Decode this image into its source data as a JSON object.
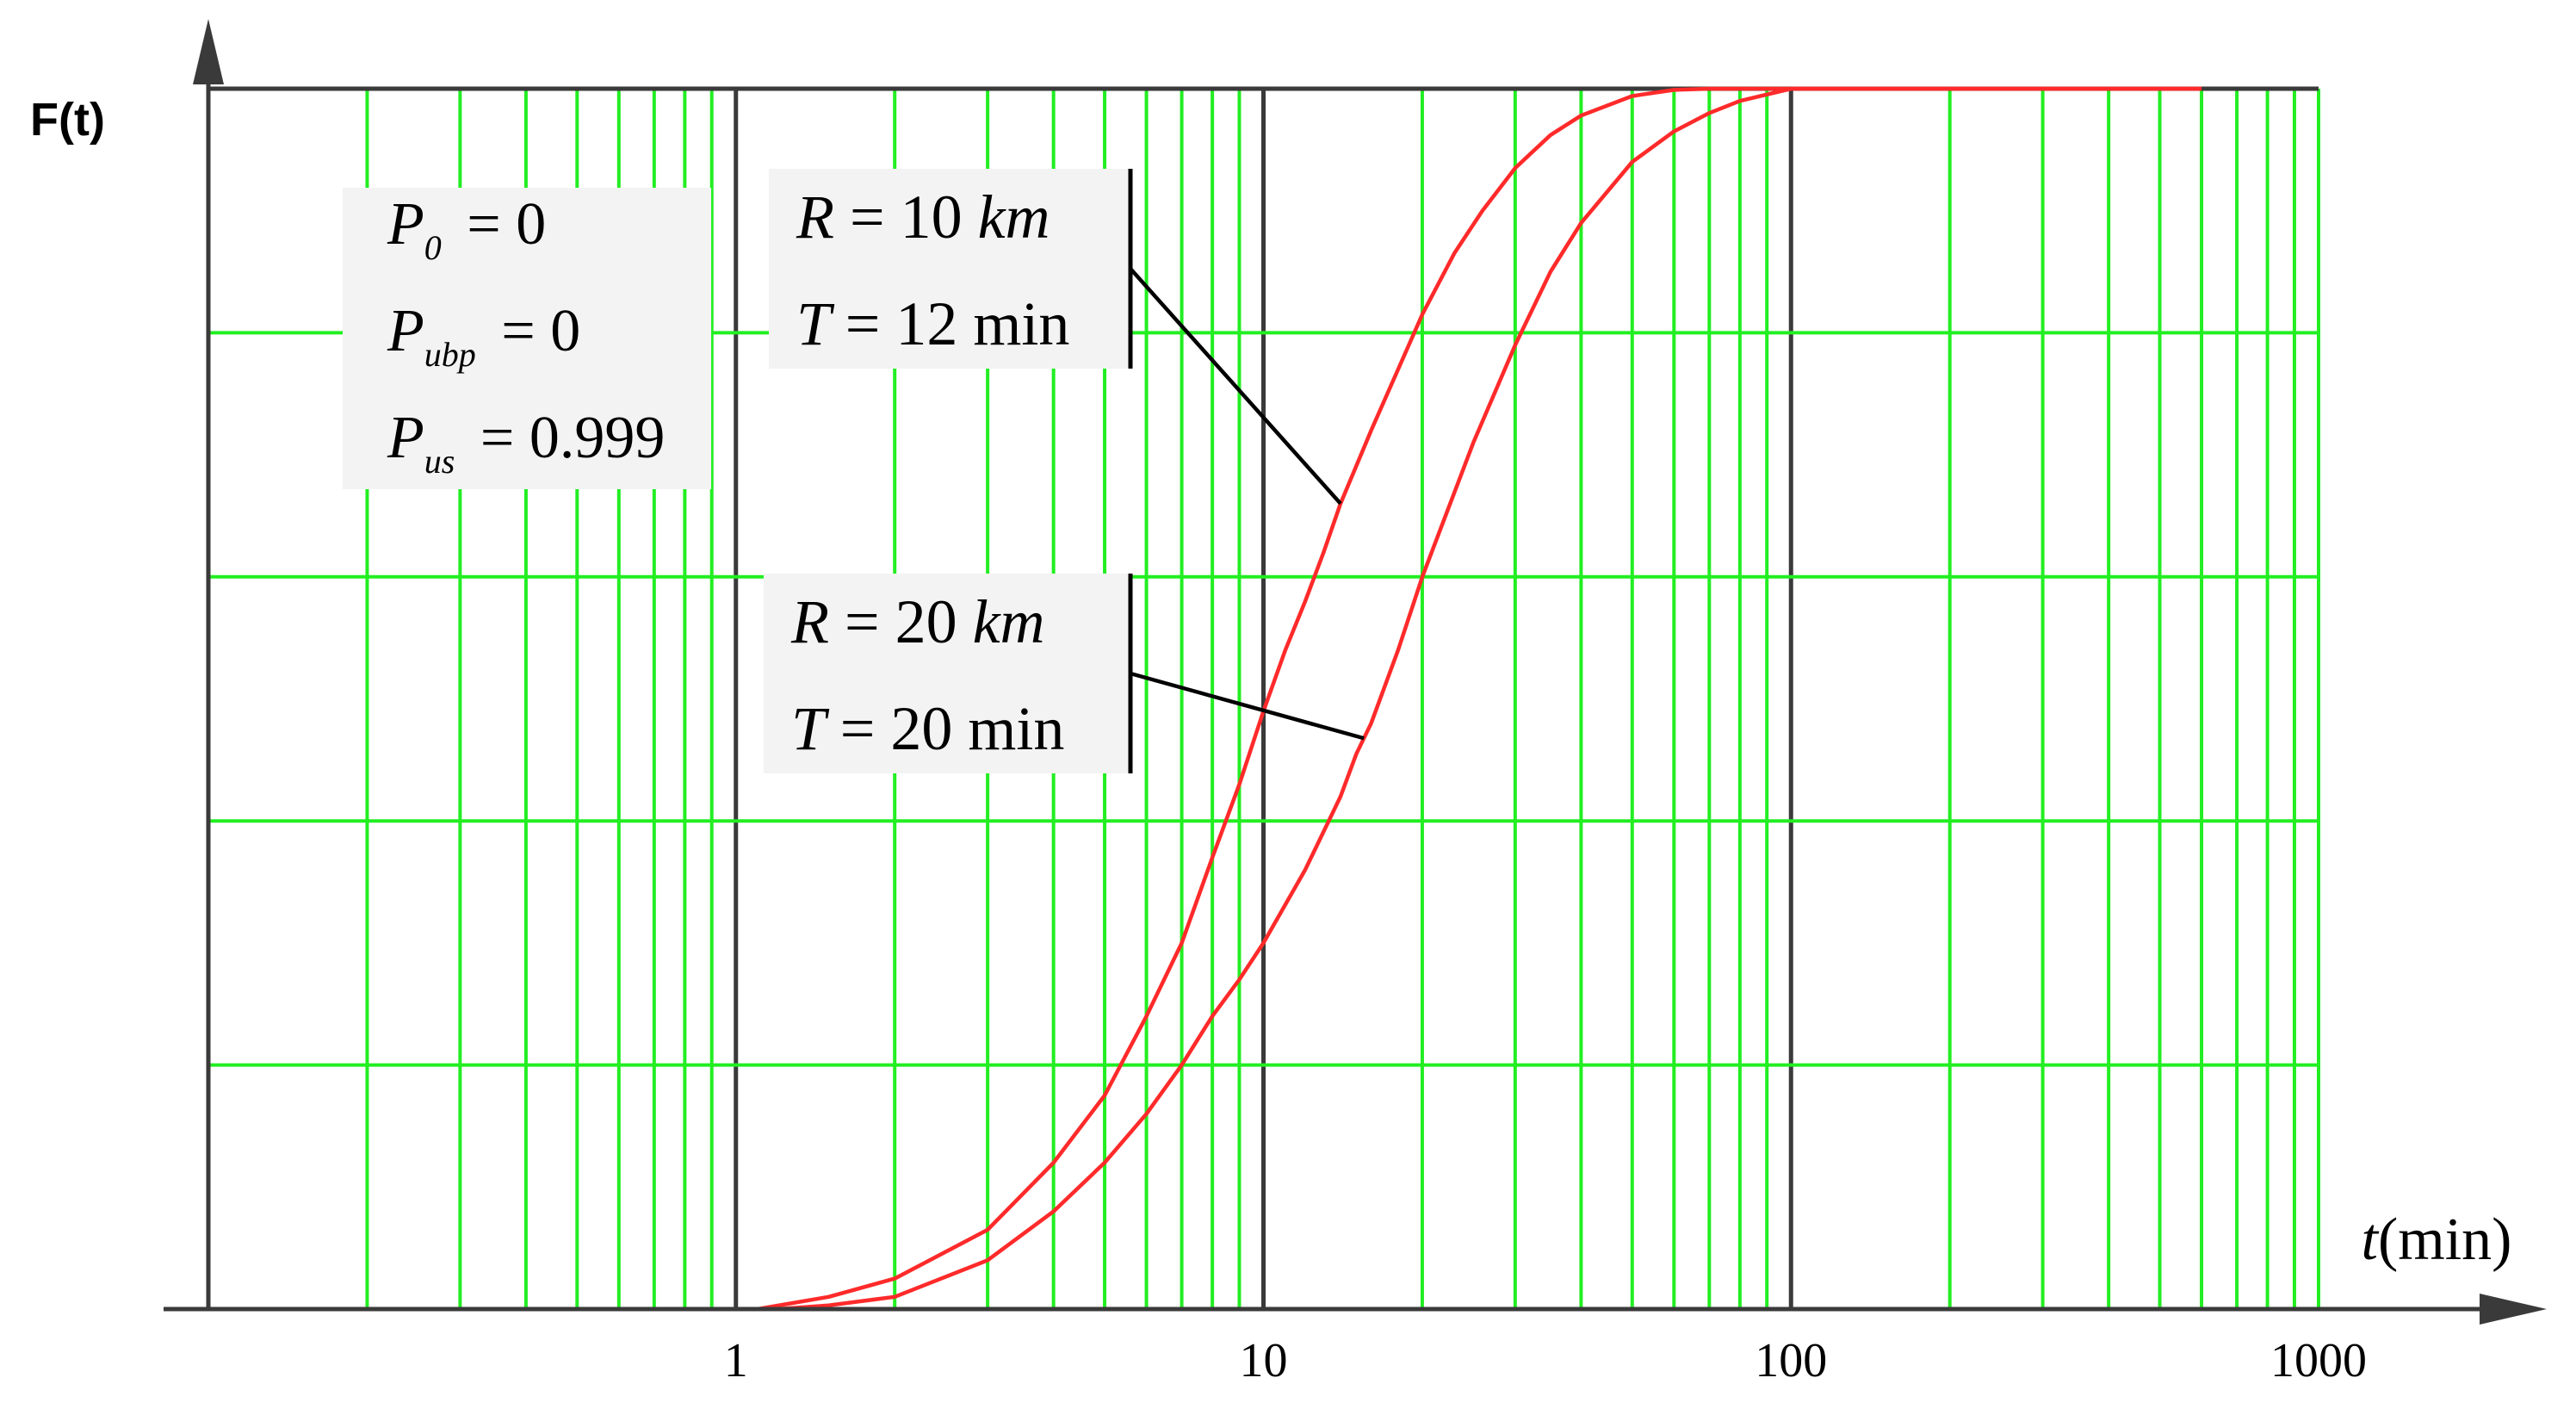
{
  "chart_data": {
    "type": "line",
    "ylabel": "F(t)",
    "xlabel_italic": "t",
    "xlabel_unit": "(min)",
    "x_scale": "log",
    "xlim": [
      0.1,
      1000
    ],
    "ylim": [
      0,
      1
    ],
    "grid": true,
    "grid_color": "#22ee22",
    "axis_color": "#3a3a3a",
    "line_color": "#ff2a2a",
    "x_ticks": [
      {
        "value": 1,
        "label": "1"
      },
      {
        "value": 10,
        "label": "10"
      },
      {
        "value": 100,
        "label": "100"
      },
      {
        "value": 1000,
        "label": "1000"
      }
    ],
    "y_gridlines": [
      0.2,
      0.4,
      0.6,
      0.8,
      1.0
    ],
    "params_box": {
      "lines": [
        {
          "sym": "P",
          "sub": "0",
          "rhs": "= 0"
        },
        {
          "sym": "P",
          "sub": "ubp",
          "rhs": "= 0"
        },
        {
          "sym": "P",
          "sub": "us",
          "rhs": "= 0.999"
        }
      ]
    },
    "series": [
      {
        "label_lines": [
          {
            "sym": "R",
            "rhs": "= 10",
            "unit": "km",
            "unit_italic": true
          },
          {
            "sym": "T",
            "rhs": "= 12",
            "unit": "min",
            "unit_italic": false
          }
        ],
        "label_anchor_x": 14.0,
        "points": [
          [
            1.1,
            0.0
          ],
          [
            1.5,
            0.01
          ],
          [
            2,
            0.025
          ],
          [
            3,
            0.065
          ],
          [
            4,
            0.12
          ],
          [
            5,
            0.175
          ],
          [
            6,
            0.24
          ],
          [
            7,
            0.3
          ],
          [
            8,
            0.37
          ],
          [
            9,
            0.43
          ],
          [
            10,
            0.49
          ],
          [
            11,
            0.54
          ],
          [
            12,
            0.58
          ],
          [
            13,
            0.62
          ],
          [
            14,
            0.66
          ],
          [
            16,
            0.72
          ],
          [
            18,
            0.77
          ],
          [
            20,
            0.815
          ],
          [
            23,
            0.865
          ],
          [
            26,
            0.9
          ],
          [
            30,
            0.935
          ],
          [
            35,
            0.962
          ],
          [
            40,
            0.978
          ],
          [
            50,
            0.994
          ],
          [
            60,
            0.999
          ],
          [
            70,
            1.0
          ],
          [
            100,
            1.0
          ],
          [
            300,
            1.0
          ],
          [
            600,
            1.0
          ]
        ]
      },
      {
        "label_lines": [
          {
            "sym": "R",
            "rhs": "= 20",
            "unit": "km",
            "unit_italic": true
          },
          {
            "sym": "T",
            "rhs": "= 20",
            "unit": "min",
            "unit_italic": false
          }
        ],
        "label_anchor_x": 15.5,
        "points": [
          [
            1.2,
            0.0
          ],
          [
            1.5,
            0.003
          ],
          [
            2,
            0.01
          ],
          [
            3,
            0.04
          ],
          [
            4,
            0.08
          ],
          [
            5,
            0.12
          ],
          [
            6,
            0.16
          ],
          [
            7,
            0.2
          ],
          [
            8,
            0.24
          ],
          [
            9,
            0.27
          ],
          [
            10,
            0.3
          ],
          [
            12,
            0.36
          ],
          [
            14,
            0.42
          ],
          [
            15,
            0.455
          ],
          [
            16,
            0.48
          ],
          [
            18,
            0.54
          ],
          [
            20,
            0.6
          ],
          [
            25,
            0.71
          ],
          [
            30,
            0.79
          ],
          [
            35,
            0.85
          ],
          [
            40,
            0.89
          ],
          [
            50,
            0.94
          ],
          [
            60,
            0.965
          ],
          [
            70,
            0.98
          ],
          [
            80,
            0.99
          ],
          [
            100,
            1.0
          ],
          [
            200,
            1.0
          ],
          [
            600,
            1.0
          ]
        ]
      }
    ]
  }
}
